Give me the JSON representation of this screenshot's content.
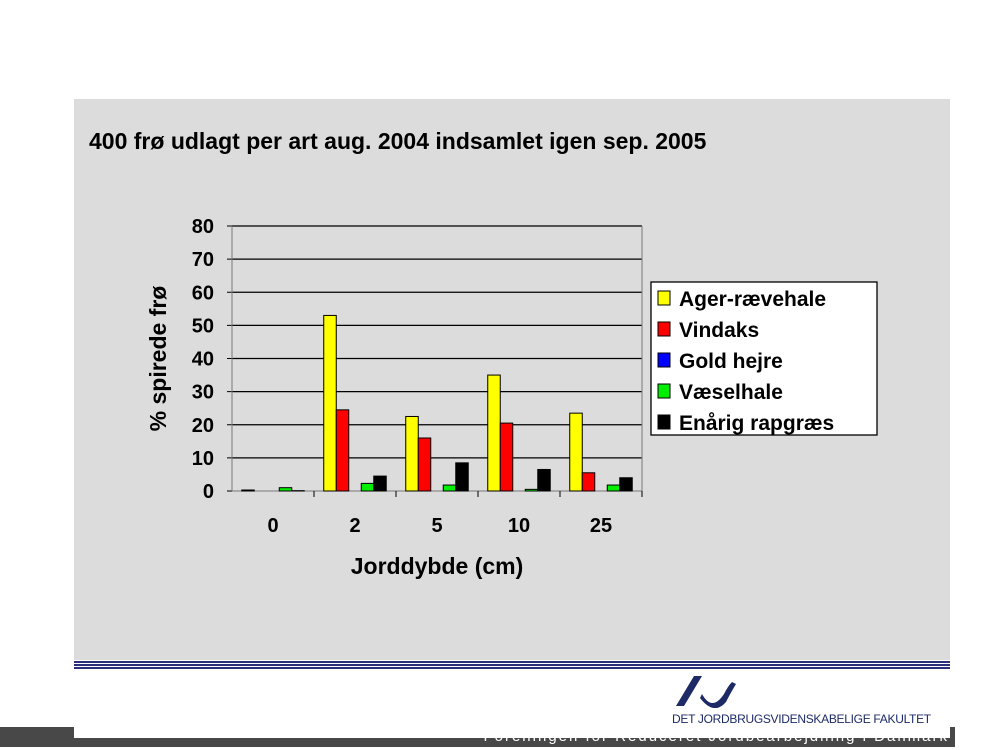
{
  "chart_data": {
    "type": "bar",
    "title": "400 frø udlagt per art aug. 2004 indsamlet igen sep. 2005",
    "xlabel": "Jorddybde (cm)",
    "ylabel": "% spirede frø",
    "ylim": [
      0,
      80
    ],
    "yticks": [
      "0",
      "10",
      "20",
      "30",
      "40",
      "50",
      "60",
      "70",
      "80"
    ],
    "categories": [
      "0",
      "2",
      "5",
      "10",
      "25"
    ],
    "legend_position": "right",
    "grid": true,
    "series": [
      {
        "name": "Ager-rævehale",
        "color": "#ffff00",
        "values": [
          0.3,
          53,
          22.5,
          35,
          23.5
        ]
      },
      {
        "name": "Vindaks",
        "color": "#ff0000",
        "values": [
          0,
          24.5,
          16,
          20.5,
          5.5
        ]
      },
      {
        "name": "Gold hejre",
        "color": "#0000ff",
        "values": [
          0,
          0,
          0,
          0,
          0
        ]
      },
      {
        "name": "Væselhale",
        "color": "#00ee00",
        "values": [
          1,
          2.3,
          1.8,
          0.5,
          1.8
        ]
      },
      {
        "name": "Enårig rapgræs",
        "color": "#000000",
        "values": [
          0.1,
          4.5,
          8.5,
          6.5,
          4
        ]
      }
    ]
  },
  "footer": {
    "faculty": "DET JORDBRUGSVIDENSKABELIGE FAKULTET",
    "organization": "Foreningen for Reduceret Jordbearbejdning i Danmark"
  }
}
